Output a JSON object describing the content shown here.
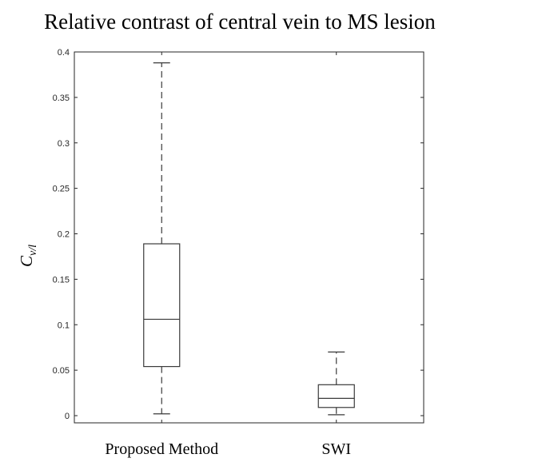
{
  "chart_data": {
    "type": "box",
    "title": "Relative contrast of central vein to MS lesion",
    "ylabel": "Cv/l",
    "ylabel_main": "C",
    "ylabel_sub": "v/l",
    "xlabel": "",
    "ylim": [
      0,
      0.4
    ],
    "yticks": [
      "0",
      "0.05",
      "0.1",
      "0.15",
      "0.2",
      "0.25",
      "0.3",
      "0.35",
      "0.4"
    ],
    "ytick_values": [
      0,
      0.05,
      0.1,
      0.15,
      0.2,
      0.25,
      0.3,
      0.35,
      0.4
    ],
    "categories": [
      "Proposed Method",
      "SWI"
    ],
    "boxes": [
      {
        "category": "Proposed Method",
        "min": 0.002,
        "q1": 0.054,
        "median": 0.106,
        "q3": 0.189,
        "max": 0.388
      },
      {
        "category": "SWI",
        "min": 0.001,
        "q1": 0.009,
        "median": 0.019,
        "q3": 0.034,
        "max": 0.07
      }
    ],
    "grid": false,
    "legend": "none"
  }
}
